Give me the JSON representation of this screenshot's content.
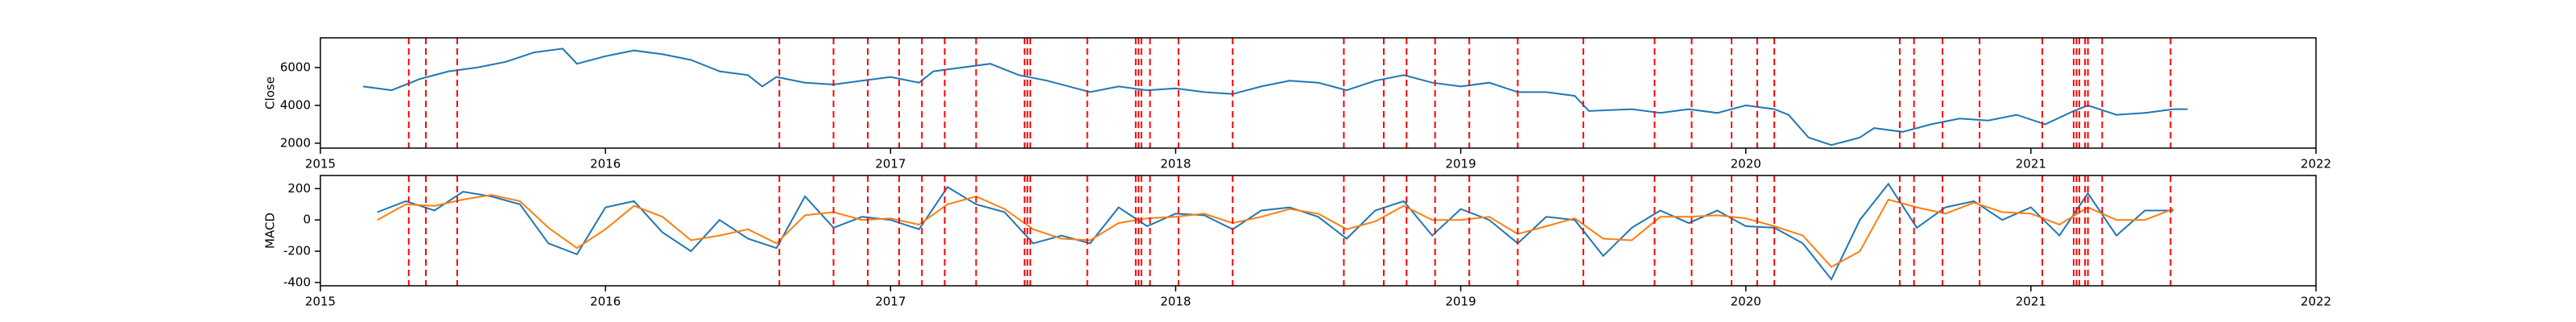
{
  "chart_data": [
    {
      "type": "line",
      "ylabel": "Close",
      "xlim": [
        2015,
        2022
      ],
      "xticks": [
        2015,
        2016,
        2017,
        2018,
        2019,
        2020,
        2021,
        2022
      ],
      "ylim": [
        1740,
        7570
      ],
      "yticks": [
        2000,
        4000,
        6000
      ],
      "x": [
        2015.15,
        2015.25,
        2015.35,
        2015.45,
        2015.55,
        2015.65,
        2015.75,
        2015.85,
        2015.9,
        2016.0,
        2016.1,
        2016.2,
        2016.3,
        2016.4,
        2016.5,
        2016.55,
        2016.6,
        2016.7,
        2016.8,
        2016.9,
        2017.0,
        2017.1,
        2017.15,
        2017.25,
        2017.35,
        2017.45,
        2017.55,
        2017.65,
        2017.7,
        2017.8,
        2017.9,
        2018.0,
        2018.1,
        2018.2,
        2018.3,
        2018.4,
        2018.5,
        2018.6,
        2018.7,
        2018.8,
        2018.9,
        2019.0,
        2019.1,
        2019.2,
        2019.3,
        2019.4,
        2019.45,
        2019.6,
        2019.7,
        2019.8,
        2019.9,
        2020.0,
        2020.1,
        2020.15,
        2020.22,
        2020.3,
        2020.4,
        2020.45,
        2020.55,
        2020.65,
        2020.75,
        2020.85,
        2020.95,
        2021.05,
        2021.15,
        2021.2,
        2021.3,
        2021.4,
        2021.5,
        2021.55
      ],
      "series": [
        {
          "color": "#1f77b4",
          "values": [
            5000,
            4800,
            5400,
            5800,
            6000,
            6300,
            6800,
            7000,
            6200,
            6600,
            6900,
            6700,
            6400,
            5800,
            5600,
            5000,
            5500,
            5200,
            5100,
            5300,
            5500,
            5200,
            5800,
            6000,
            6200,
            5600,
            5300,
            4900,
            4700,
            5000,
            4800,
            4900,
            4700,
            4600,
            5000,
            5300,
            5200,
            4800,
            5300,
            5600,
            5200,
            5000,
            5200,
            4700,
            4700,
            4500,
            3700,
            3800,
            3600,
            3800,
            3600,
            4000,
            3800,
            3500,
            2300,
            1900,
            2300,
            2800,
            2600,
            3000,
            3300,
            3200,
            3500,
            3000,
            3700,
            4000,
            3500,
            3600,
            3800,
            3800
          ]
        }
      ],
      "vline_color": "red",
      "vlines": [
        2015.31,
        2015.37,
        2015.48,
        2016.61,
        2016.8,
        2016.92,
        2017.03,
        2017.11,
        2017.19,
        2017.3,
        2017.47,
        2017.48,
        2017.49,
        2017.69,
        2017.86,
        2017.87,
        2017.88,
        2017.91,
        2018.01,
        2018.2,
        2018.59,
        2018.73,
        2018.81,
        2018.91,
        2019.03,
        2019.2,
        2019.43,
        2019.68,
        2019.81,
        2019.95,
        2020.04,
        2020.1,
        2020.54,
        2020.59,
        2020.69,
        2020.82,
        2021.04,
        2021.15,
        2021.16,
        2021.17,
        2021.19,
        2021.2,
        2021.25,
        2021.49
      ]
    },
    {
      "type": "line",
      "ylabel": "MACD",
      "xlim": [
        2015,
        2022
      ],
      "xticks": [
        2015,
        2016,
        2017,
        2018,
        2019,
        2020,
        2021,
        2022
      ],
      "ylim": [
        -421,
        284
      ],
      "yticks": [
        -400,
        -200,
        0,
        200
      ],
      "x": [
        2015.2,
        2015.3,
        2015.4,
        2015.5,
        2015.6,
        2015.7,
        2015.8,
        2015.9,
        2016.0,
        2016.1,
        2016.2,
        2016.3,
        2016.4,
        2016.5,
        2016.6,
        2016.7,
        2016.8,
        2016.9,
        2017.0,
        2017.1,
        2017.2,
        2017.3,
        2017.4,
        2017.5,
        2017.6,
        2017.7,
        2017.8,
        2017.9,
        2018.0,
        2018.1,
        2018.2,
        2018.3,
        2018.4,
        2018.5,
        2018.6,
        2018.7,
        2018.8,
        2018.9,
        2019.0,
        2019.1,
        2019.2,
        2019.3,
        2019.4,
        2019.5,
        2019.6,
        2019.7,
        2019.8,
        2019.9,
        2020.0,
        2020.1,
        2020.2,
        2020.3,
        2020.4,
        2020.5,
        2020.6,
        2020.7,
        2020.8,
        2020.9,
        2021.0,
        2021.1,
        2021.2,
        2021.3,
        2021.4,
        2021.5
      ],
      "series": [
        {
          "color": "#1f77b4",
          "values": [
            50,
            120,
            60,
            180,
            150,
            100,
            -150,
            -220,
            80,
            120,
            -80,
            -200,
            0,
            -120,
            -180,
            150,
            -50,
            20,
            0,
            -60,
            210,
            100,
            50,
            -150,
            -100,
            -150,
            80,
            -40,
            40,
            30,
            -60,
            60,
            80,
            20,
            -120,
            60,
            120,
            -100,
            70,
            0,
            -150,
            20,
            0,
            -230,
            -50,
            60,
            -20,
            60,
            -40,
            -50,
            -150,
            -380,
            0,
            230,
            -50,
            80,
            120,
            0,
            80,
            -100,
            170,
            -100,
            60,
            60
          ]
        },
        {
          "color": "#ff7f0e",
          "values": [
            0,
            100,
            90,
            130,
            160,
            120,
            -50,
            -180,
            -60,
            90,
            20,
            -130,
            -100,
            -60,
            -150,
            30,
            50,
            0,
            10,
            -30,
            100,
            150,
            70,
            -60,
            -120,
            -130,
            -20,
            10,
            20,
            40,
            -20,
            20,
            70,
            40,
            -60,
            -10,
            90,
            0,
            0,
            20,
            -90,
            -40,
            10,
            -120,
            -130,
            20,
            20,
            30,
            10,
            -40,
            -100,
            -300,
            -200,
            130,
            80,
            40,
            110,
            50,
            40,
            -30,
            80,
            0,
            0,
            70
          ]
        }
      ],
      "vline_color": "red",
      "vlines": [
        2015.31,
        2015.37,
        2015.48,
        2016.61,
        2016.8,
        2016.92,
        2017.03,
        2017.11,
        2017.19,
        2017.3,
        2017.47,
        2017.48,
        2017.49,
        2017.69,
        2017.86,
        2017.87,
        2017.88,
        2017.91,
        2018.01,
        2018.2,
        2018.59,
        2018.73,
        2018.81,
        2018.91,
        2019.03,
        2019.2,
        2019.43,
        2019.68,
        2019.81,
        2019.95,
        2020.04,
        2020.1,
        2020.54,
        2020.59,
        2020.69,
        2020.82,
        2021.04,
        2021.15,
        2021.16,
        2021.17,
        2021.19,
        2021.2,
        2021.25,
        2021.49
      ]
    }
  ]
}
